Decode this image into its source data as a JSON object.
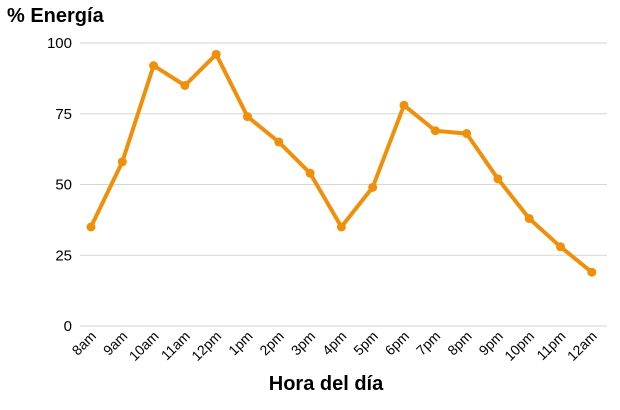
{
  "chart_data": {
    "type": "line",
    "ylabel": "% Energía",
    "xlabel": "Hora del día",
    "categories": [
      "8am",
      "9am",
      "10am",
      "11am",
      "12pm",
      "1pm",
      "2pm",
      "3pm",
      "4pm",
      "5pm",
      "6pm",
      "7pm",
      "8pm",
      "9pm",
      "10pm",
      "11pm",
      "12am"
    ],
    "series": [
      {
        "values": [
          35,
          58,
          92,
          85,
          96,
          74,
          65,
          54,
          35,
          49,
          78,
          69,
          68,
          52,
          38,
          28,
          19
        ]
      }
    ],
    "ylim": [
      0,
      100
    ],
    "yticks": [
      0,
      25,
      50,
      75,
      100
    ],
    "grid": true,
    "line_color": "#f0900a",
    "grid_color": "#d6d6d6"
  }
}
